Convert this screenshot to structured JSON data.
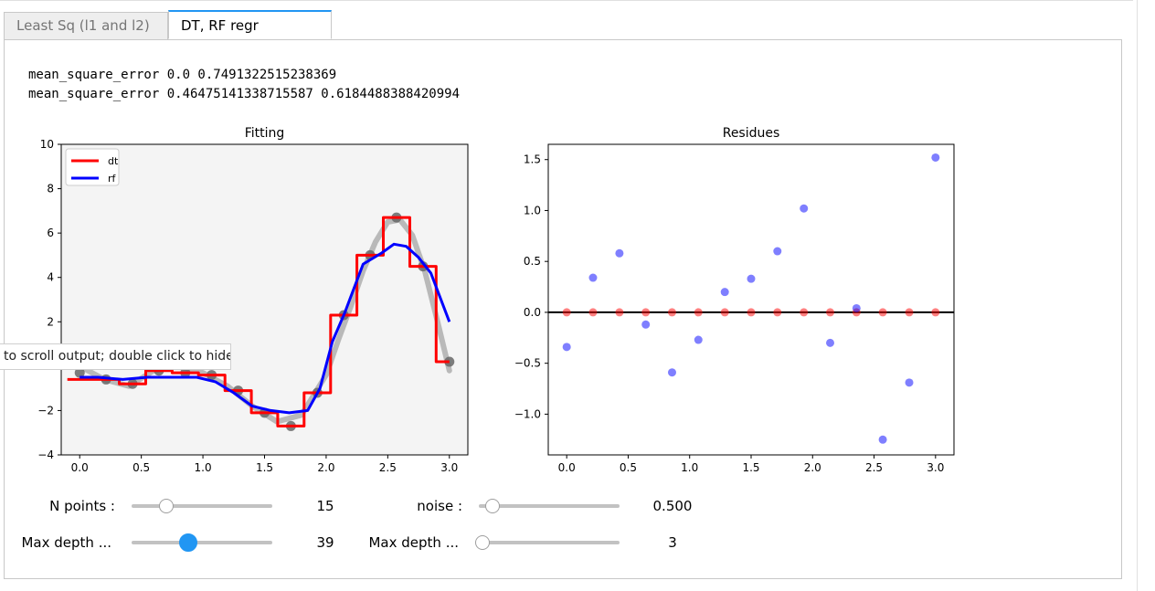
{
  "tabs": [
    {
      "label": "Least Sq (l1 and l2)"
    },
    {
      "label": "DT, RF regr"
    }
  ],
  "output": {
    "line1": "mean_square_error 0.0 0.7491322515238369",
    "line2": "mean_square_error 0.46475141338715587 0.6184488388420994"
  },
  "tooltip": "to scroll output; double click to hide",
  "widgets": {
    "n_points": {
      "label": "N points :",
      "value": "15",
      "level": 0.14
    },
    "noise": {
      "label": "noise :",
      "value": "0.500",
      "level": 0.1
    },
    "max_depth_dt": {
      "label": "Max depth ...",
      "value": "39",
      "level": 0.39
    },
    "max_depth_rf": {
      "label": "Max depth ...",
      "value": "3",
      "level": 0.0
    }
  },
  "chart_data": [
    {
      "type": "line",
      "title": "Fitting",
      "xlabel": "",
      "ylabel": "",
      "xlim": [
        -0.15,
        3.15
      ],
      "ylim": [
        -4,
        10
      ],
      "xticks": [
        "0.0",
        "0.5",
        "1.0",
        "1.5",
        "2.0",
        "2.5",
        "3.0"
      ],
      "yticks": [
        "−4",
        "−2",
        "0",
        "2",
        "4",
        "6",
        "8",
        "10"
      ],
      "legend": {
        "position": "upper-left",
        "entries": [
          {
            "name": "dt",
            "color": "#ff0000"
          },
          {
            "name": "rf",
            "color": "#0000ff"
          }
        ]
      },
      "true_curve": {
        "color": "#aaaaaa",
        "x": [
          0.0,
          0.2,
          0.4,
          0.6,
          0.8,
          1.0,
          1.2,
          1.4,
          1.6,
          1.8,
          2.0,
          2.1,
          2.2,
          2.3,
          2.4,
          2.5,
          2.6,
          2.7,
          2.8,
          2.9,
          3.0
        ],
        "y": [
          0.0,
          -0.6,
          -0.9,
          -0.2,
          0.0,
          -0.3,
          -0.9,
          -1.8,
          -2.5,
          -2.2,
          -0.4,
          1.2,
          2.7,
          4.3,
          5.6,
          6.5,
          6.6,
          5.9,
          4.3,
          2.1,
          -0.2
        ]
      },
      "points": {
        "color": "#666666",
        "x": [
          0.0,
          0.214,
          0.429,
          0.643,
          0.857,
          1.071,
          1.286,
          1.5,
          1.714,
          1.929,
          2.143,
          2.357,
          2.571,
          2.786,
          3.0
        ],
        "y": [
          -0.3,
          -0.6,
          -0.8,
          -0.2,
          -0.3,
          -0.4,
          -1.1,
          -2.1,
          -2.7,
          -1.2,
          2.3,
          5.0,
          6.7,
          4.5,
          0.2
        ]
      },
      "series": [
        {
          "name": "dt",
          "color": "#ff0000",
          "x": [
            -0.1,
            0.107,
            0.107,
            0.321,
            0.321,
            0.536,
            0.536,
            0.75,
            0.75,
            0.964,
            0.964,
            1.179,
            1.179,
            1.393,
            1.393,
            1.607,
            1.607,
            1.821,
            1.821,
            2.036,
            2.036,
            2.25,
            2.25,
            2.464,
            2.464,
            2.679,
            2.679,
            2.893,
            2.893,
            3.0
          ],
          "y": [
            -0.6,
            -0.6,
            -0.6,
            -0.6,
            -0.8,
            -0.8,
            -0.2,
            -0.2,
            -0.3,
            -0.3,
            -0.4,
            -0.4,
            -1.1,
            -1.1,
            -2.1,
            -2.1,
            -2.7,
            -2.7,
            -1.2,
            -1.2,
            2.3,
            2.3,
            5.0,
            5.0,
            6.7,
            6.7,
            4.5,
            4.5,
            0.2,
            0.2
          ]
        },
        {
          "name": "rf",
          "color": "#0000ff",
          "x": [
            0.0,
            0.15,
            0.35,
            0.55,
            0.75,
            0.95,
            1.1,
            1.25,
            1.4,
            1.55,
            1.7,
            1.85,
            1.95,
            2.05,
            2.15,
            2.3,
            2.45,
            2.55,
            2.65,
            2.75,
            2.85,
            3.0
          ],
          "y": [
            -0.5,
            -0.5,
            -0.6,
            -0.5,
            -0.5,
            -0.5,
            -0.7,
            -1.2,
            -1.8,
            -2.0,
            -2.1,
            -2.0,
            -1.0,
            1.1,
            2.4,
            4.6,
            5.1,
            5.5,
            5.4,
            4.9,
            4.2,
            2.0
          ]
        }
      ]
    },
    {
      "type": "scatter",
      "title": "Residues",
      "xlabel": "",
      "ylabel": "",
      "xlim": [
        -0.15,
        3.15
      ],
      "ylim": [
        -1.4,
        1.65
      ],
      "xticks": [
        "0.0",
        "0.5",
        "1.0",
        "1.5",
        "2.0",
        "2.5",
        "3.0"
      ],
      "yticks": [
        "−1.0",
        "−0.5",
        "0.0",
        "0.5",
        "1.0",
        "1.5"
      ],
      "zero_line": {
        "color": "#000000"
      },
      "series": [
        {
          "name": "",
          "color": "#ff0000",
          "x": [
            0.0,
            0.214,
            0.429,
            0.643,
            0.857,
            1.071,
            1.286,
            1.5,
            1.714,
            1.929,
            2.143,
            2.357,
            2.571,
            2.786,
            3.0
          ],
          "y": [
            0,
            0,
            0,
            0,
            0,
            0,
            0,
            0,
            0,
            0,
            0,
            0,
            0,
            0,
            0
          ]
        },
        {
          "name": "",
          "color": "#0000ff",
          "x": [
            0.0,
            0.214,
            0.429,
            0.643,
            0.857,
            1.071,
            1.286,
            1.5,
            1.714,
            1.929,
            2.143,
            2.357,
            2.571,
            2.786,
            3.0
          ],
          "y": [
            -0.34,
            0.34,
            0.58,
            -0.12,
            -0.59,
            -0.27,
            0.2,
            0.33,
            0.6,
            1.02,
            -0.3,
            0.04,
            -1.25,
            -0.69,
            1.52
          ]
        }
      ]
    }
  ]
}
